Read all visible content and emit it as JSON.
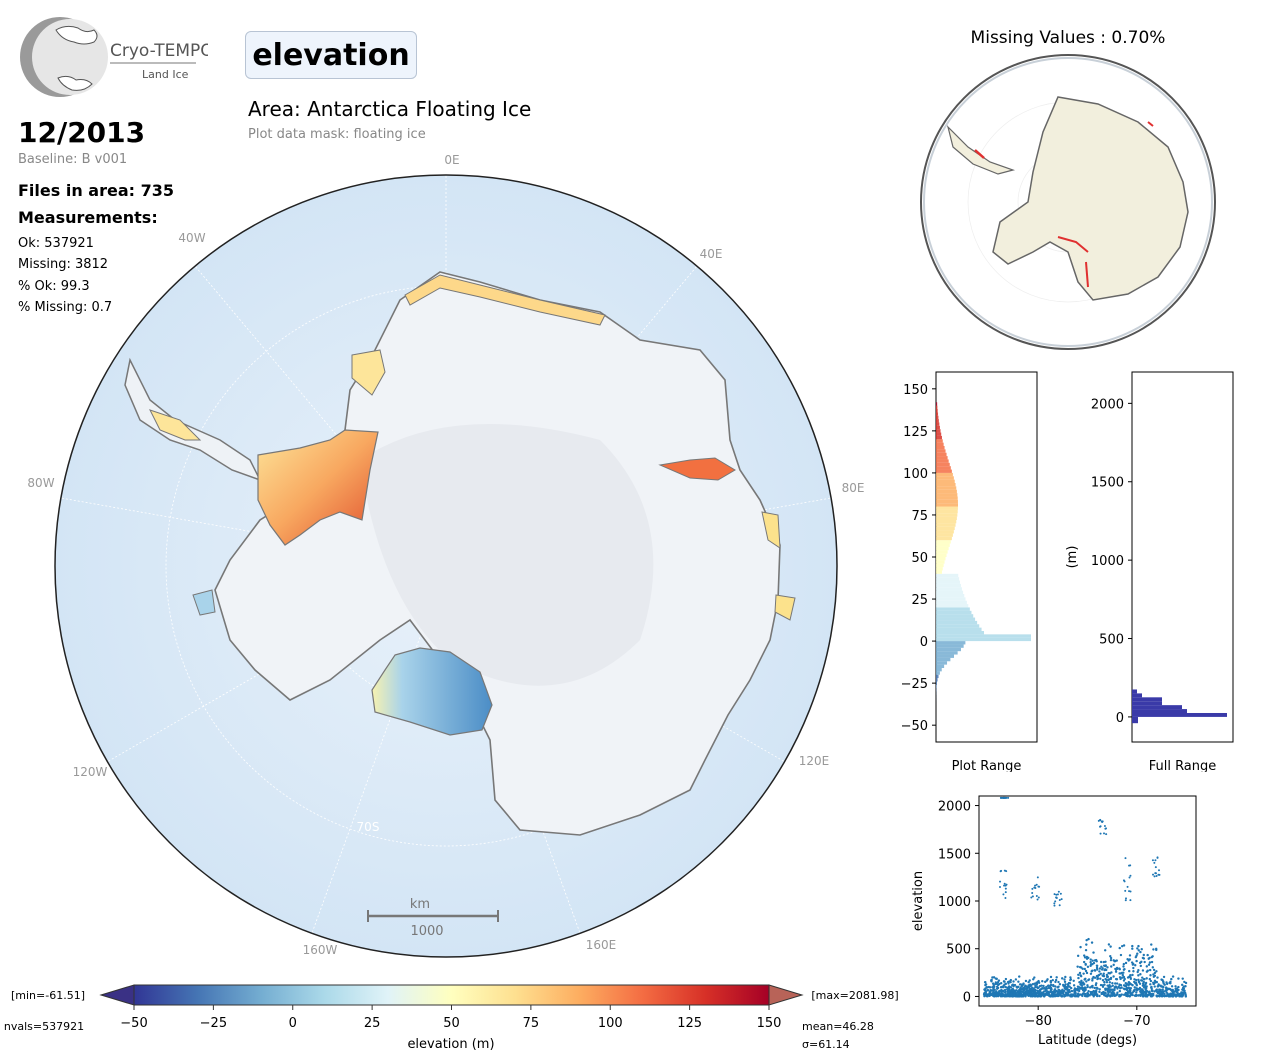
{
  "logo": {
    "name": "Cryo-TEMPO",
    "sub": "Land Ice"
  },
  "header": {
    "title": "elevation",
    "area": "Area: Antarctica Floating Ice",
    "mask": "Plot data mask: floating ice"
  },
  "stats": {
    "date": "12/2013",
    "baseline": "Baseline: B v001",
    "files": "Files in area: 735",
    "measurements_heading": "Measurements:",
    "ok": "Ok: 537921",
    "missing": "Missing: 3812",
    "pct_ok": "% Ok: 99.3",
    "pct_missing": "% Missing: 0.7"
  },
  "map": {
    "meridian_labels": [
      "0E",
      "40E",
      "80E",
      "120E",
      "160E",
      "160W",
      "120W",
      "80W",
      "40W"
    ],
    "parallel_label": "70S",
    "scalebar": {
      "unit": "km",
      "value": "1000"
    }
  },
  "inset": {
    "title": "Missing Values : 0.70%"
  },
  "colorbar": {
    "ticks": [
      "−50",
      "−25",
      "0",
      "25",
      "50",
      "75",
      "100",
      "125",
      "150"
    ],
    "label": "elevation (m)",
    "min": "[min=-61.51]",
    "max": "[max=2081.98]",
    "nvals": "nvals=537921",
    "mean": "mean=46.28",
    "sigma": "σ=61.14",
    "colors": [
      "#313695",
      "#4575b4",
      "#74add1",
      "#abd9e9",
      "#e0f3f8",
      "#ffffbf",
      "#fee090",
      "#fdae61",
      "#f46d43",
      "#d73027",
      "#a50026"
    ]
  },
  "chart_data": [
    {
      "type": "histogram",
      "xlabel": "Plot Range",
      "ylim": [
        -60,
        160
      ],
      "yticks": [
        "150",
        "125",
        "100",
        "75",
        "50",
        "25",
        "0",
        "−25",
        "−50"
      ]
    },
    {
      "type": "histogram",
      "xlabel": "Full Range",
      "ylabel": "(m)",
      "ylim": [
        -160,
        2200
      ],
      "yticks": [
        "2000",
        "1500",
        "1000",
        "500",
        "0"
      ],
      "color": "#3a3aa8"
    },
    {
      "type": "scatter",
      "xlabel": "Latitude (degs)",
      "ylabel": "elevation",
      "xlim": [
        -86,
        -64
      ],
      "ylim": [
        -100,
        2100
      ],
      "xticks": [
        "−80",
        "−70"
      ],
      "yticks": [
        "2000",
        "1500",
        "1000",
        "500",
        "0"
      ],
      "color": "#1f77b4"
    }
  ]
}
